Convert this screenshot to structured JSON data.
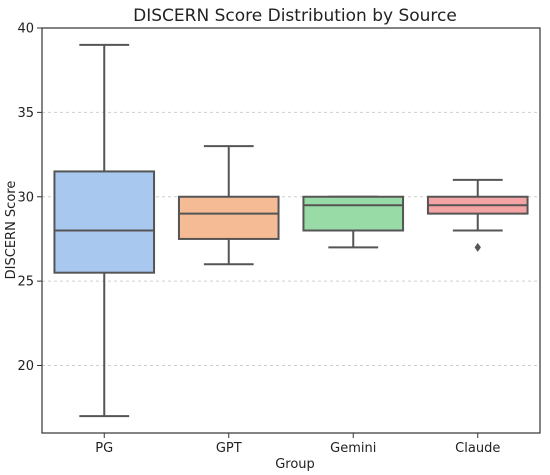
{
  "chart_data": {
    "type": "box",
    "title": "DISCERN Score Distribution by Source",
    "xlabel": "Group",
    "ylabel": "DISCERN Score",
    "ylim": [
      16,
      40
    ],
    "yticks": [
      20,
      25,
      30,
      35,
      40
    ],
    "grid": true,
    "categories": [
      "PG",
      "GPT",
      "Gemini",
      "Claude"
    ],
    "series": [
      {
        "category": "PG",
        "min": 17,
        "q1": 25.5,
        "median": 28,
        "q3": 31.5,
        "max": 39,
        "outliers": [],
        "color": "#a9c8f0"
      },
      {
        "category": "GPT",
        "min": 26,
        "q1": 27.5,
        "median": 29,
        "q3": 30,
        "max": 33,
        "outliers": [],
        "color": "#f5bb94"
      },
      {
        "category": "Gemini",
        "min": 27,
        "q1": 28,
        "median": 29.5,
        "q3": 30,
        "max": 30,
        "outliers": [],
        "color": "#98dba6"
      },
      {
        "category": "Claude",
        "min": 28,
        "q1": 29,
        "median": 29.5,
        "q3": 30,
        "max": 31,
        "outliers": [
          27
        ],
        "color": "#f4a4a4"
      }
    ]
  }
}
